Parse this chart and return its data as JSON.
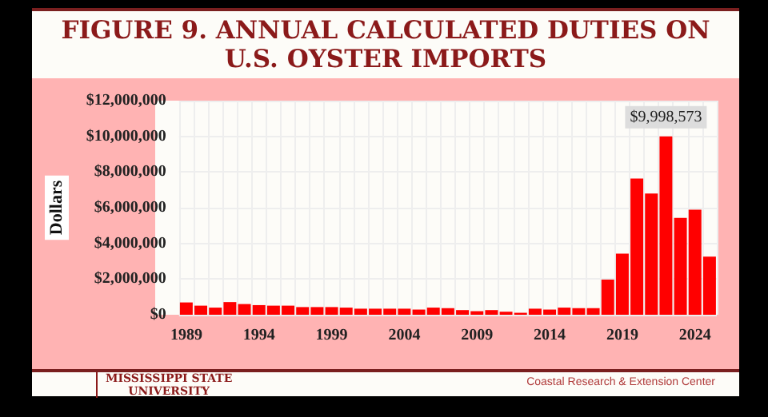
{
  "chart_data": {
    "type": "bar",
    "title": "FIGURE 9. ANNUAL CALCULATED DUTIES ON U.S. OYSTER IMPORTS",
    "ylabel": "Dollars",
    "categories": [
      "1989",
      null,
      null,
      null,
      null,
      "1994",
      null,
      null,
      null,
      null,
      "1999",
      null,
      null,
      null,
      null,
      "2004",
      null,
      null,
      null,
      null,
      "2009",
      null,
      null,
      null,
      null,
      "2014",
      null,
      null,
      null,
      null,
      "2019",
      null,
      null,
      null,
      null,
      "2024",
      null
    ],
    "values": [
      690000,
      510000,
      400000,
      710000,
      600000,
      540000,
      510000,
      510000,
      430000,
      430000,
      430000,
      400000,
      340000,
      340000,
      340000,
      340000,
      290000,
      400000,
      370000,
      260000,
      200000,
      260000,
      170000,
      110000,
      340000,
      290000,
      400000,
      370000,
      370000,
      1970000,
      3430000,
      7630000,
      6800000,
      9998573,
      5430000,
      5890000,
      3260000
    ],
    "value_labels": [
      null,
      null,
      null,
      null,
      null,
      null,
      null,
      null,
      null,
      null,
      null,
      null,
      null,
      null,
      null,
      null,
      null,
      null,
      null,
      null,
      null,
      null,
      null,
      null,
      null,
      null,
      null,
      null,
      null,
      null,
      null,
      null,
      null,
      "$9,998,573",
      null,
      null,
      null
    ],
    "color": "#ff0000",
    "ylim": [
      0,
      12000000
    ],
    "yticks": [
      {
        "value": 0,
        "label": "$0"
      },
      {
        "value": 2000000,
        "label": "$2,000,000"
      },
      {
        "value": 4000000,
        "label": "$4,000,000"
      },
      {
        "value": 6000000,
        "label": "$6,000,000"
      },
      {
        "value": 8000000,
        "label": "$8,000,000"
      },
      {
        "value": 10000000,
        "label": "$10,000,000"
      },
      {
        "value": 12000000,
        "label": "$12,000,000"
      }
    ],
    "grid": true,
    "annotations": [
      "MISSISSIPPI STATE\nUNIVERSITY",
      "Coastal Research & Extension Center"
    ]
  }
}
